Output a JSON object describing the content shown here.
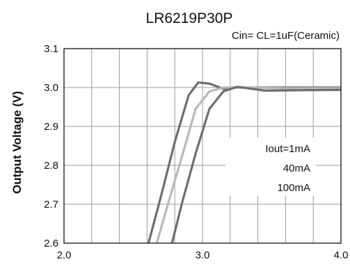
{
  "chart_data": {
    "type": "line",
    "title": "LR6219P30P",
    "subtitle": "Cin= CL=1uF(Ceramic)",
    "xlabel": "",
    "ylabel": "Output Voltage (V)",
    "xlim": [
      2.0,
      4.0
    ],
    "ylim": [
      2.6,
      3.1
    ],
    "x_ticks": [
      "2.0",
      "3.0",
      "4.0"
    ],
    "y_ticks": [
      "2.6",
      "2.7",
      "2.8",
      "2.9",
      "3.0",
      "3.1"
    ],
    "grid": true,
    "legend_placement": "right",
    "series": [
      {
        "name": "Iout=1mA",
        "color": "#6e6e6e",
        "points": [
          [
            2.61,
            2.6
          ],
          [
            2.7,
            2.72
          ],
          [
            2.8,
            2.86
          ],
          [
            2.9,
            2.98
          ],
          [
            2.97,
            3.013
          ],
          [
            3.05,
            3.01
          ],
          [
            3.15,
            2.997
          ],
          [
            3.25,
            3.0
          ],
          [
            3.5,
            3.0
          ],
          [
            4.0,
            3.0
          ]
        ]
      },
      {
        "name": "40mA",
        "color": "#b8b8b8",
        "points": [
          [
            2.67,
            2.6
          ],
          [
            2.75,
            2.7
          ],
          [
            2.85,
            2.82
          ],
          [
            2.95,
            2.945
          ],
          [
            3.05,
            2.99
          ],
          [
            3.15,
            3.0
          ],
          [
            3.3,
            3.0
          ],
          [
            3.6,
            2.998
          ],
          [
            4.0,
            2.998
          ]
        ]
      },
      {
        "name": "100mA",
        "color": "#6e6e6e",
        "points": [
          [
            2.78,
            2.6
          ],
          [
            2.85,
            2.7
          ],
          [
            2.95,
            2.83
          ],
          [
            3.05,
            2.945
          ],
          [
            3.15,
            2.99
          ],
          [
            3.25,
            3.002
          ],
          [
            3.35,
            2.997
          ],
          [
            3.45,
            2.992
          ],
          [
            3.7,
            2.993
          ],
          [
            4.0,
            2.994
          ]
        ]
      }
    ]
  }
}
